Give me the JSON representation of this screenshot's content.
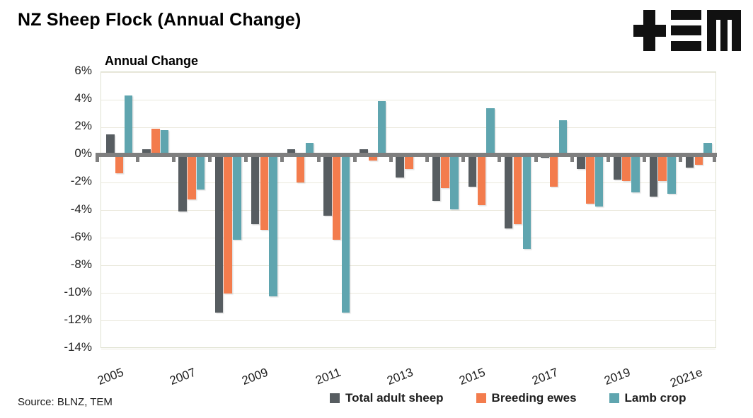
{
  "header": {
    "title": "NZ Sheep Flock (Annual Change)",
    "logo": "tem-logo"
  },
  "chart_data": {
    "type": "bar",
    "title": "Annual Change",
    "xlabel": "",
    "ylabel": "",
    "ylim": [
      -14,
      6
    ],
    "ytick_step": 2,
    "grid": true,
    "legend_position": "bottom",
    "categories": [
      "2005",
      "2006",
      "2007",
      "2008",
      "2009",
      "2010",
      "2011",
      "2012",
      "2013",
      "2014",
      "2015",
      "2016",
      "2017",
      "2018",
      "2019",
      "2020",
      "2021e"
    ],
    "series": [
      {
        "name": "Total adult sheep",
        "color": "#575D61",
        "values": [
          1.5,
          0.4,
          -4.1,
          -11.4,
          -5.0,
          0.4,
          -4.4,
          0.4,
          -1.6,
          -3.3,
          -2.3,
          -5.3,
          -0.2,
          -1.0,
          -1.8,
          -3.0,
          -0.9
        ]
      },
      {
        "name": "Breeding ewes",
        "color": "#F37C4D",
        "values": [
          -1.3,
          1.9,
          -3.2,
          -10.0,
          -5.4,
          -2.0,
          -6.1,
          -0.4,
          -1.0,
          -2.4,
          -3.6,
          -5.0,
          -2.3,
          -3.5,
          -1.9,
          -1.9,
          -0.7
        ]
      },
      {
        "name": "Lamb crop",
        "color": "#5FA5AF",
        "values": [
          4.3,
          1.8,
          -2.5,
          -6.1,
          -10.2,
          0.9,
          -11.4,
          3.9,
          0.0,
          -3.9,
          3.4,
          -6.8,
          2.5,
          -3.7,
          -2.7,
          -2.8,
          0.9
        ]
      }
    ],
    "yticks": [
      "6%",
      "4%",
      "2%",
      "0%",
      "-2%",
      "-4%",
      "-6%",
      "-8%",
      "-10%",
      "-12%",
      "-14%"
    ],
    "xticks": [
      "2005",
      "2007",
      "2009",
      "2011",
      "2013",
      "2015",
      "2017",
      "2019",
      "2021e"
    ],
    "axis_color": "#7f7f7f",
    "gridline_color": "#eae8dc"
  },
  "footer": {
    "source": "Source: BLNZ, TEM"
  }
}
